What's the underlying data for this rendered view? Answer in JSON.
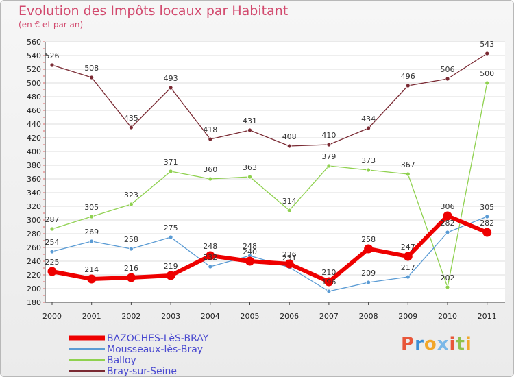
{
  "chart_data": {
    "type": "line",
    "title": "Evolution des Impôts locaux par Habitant",
    "subtitle": "(en € et par an)",
    "categories": [
      "2000",
      "2001",
      "2002",
      "2003",
      "2004",
      "2005",
      "2006",
      "2007",
      "2008",
      "2009",
      "2010",
      "2011"
    ],
    "ylim": [
      180,
      560
    ],
    "yticks": [
      180,
      200,
      220,
      240,
      260,
      280,
      300,
      320,
      340,
      360,
      380,
      400,
      420,
      440,
      460,
      480,
      500,
      520,
      540,
      560
    ],
    "grid": "horizontal",
    "legend_position": "bottom-left",
    "series": [
      {
        "name": "Bray-sur-Seine",
        "color": "#7a2a33",
        "values": [
          526,
          508,
          435,
          493,
          418,
          431,
          408,
          410,
          434,
          496,
          506,
          543
        ]
      },
      {
        "name": "Balloy",
        "color": "#8fd14f",
        "values": [
          287,
          305,
          323,
          371,
          360,
          363,
          314,
          379,
          373,
          367,
          202,
          500
        ]
      },
      {
        "name": "Mousseaux-lès-Bray",
        "color": "#5a9bd4",
        "values": [
          254,
          269,
          258,
          275,
          232,
          248,
          231,
          196,
          209,
          217,
          282,
          305
        ]
      },
      {
        "name": "BAZOCHES-LèS-BRAY",
        "color": "#ee0000",
        "values": [
          225,
          214,
          216,
          219,
          248,
          240,
          236,
          210,
          258,
          247,
          306,
          282
        ]
      }
    ]
  },
  "logo": {
    "text": "Proxiti",
    "letters": [
      "P",
      "r",
      "o",
      "x",
      "i",
      "t",
      "i"
    ]
  }
}
